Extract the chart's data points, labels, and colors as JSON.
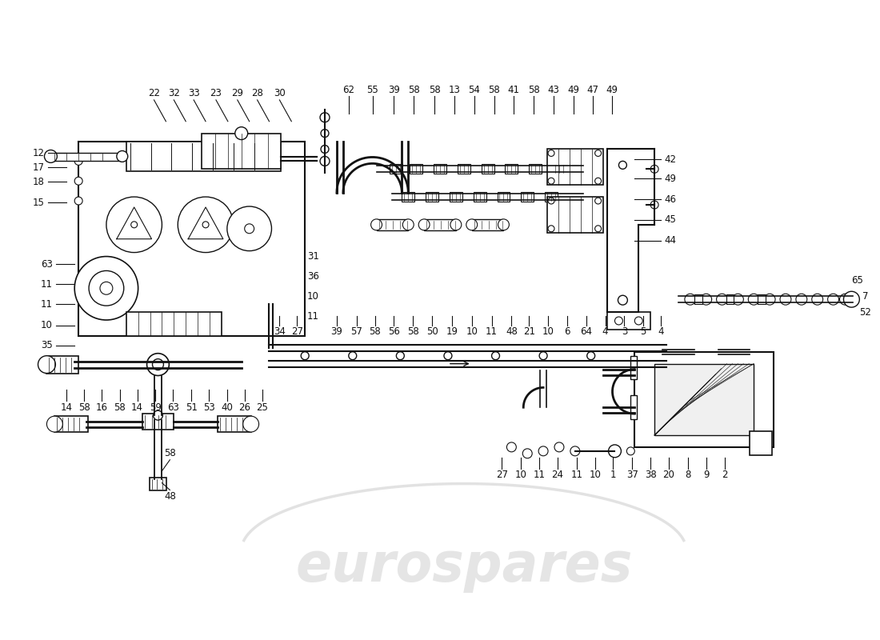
{
  "bg_color": "#ffffff",
  "line_color": "#111111",
  "watermark_color": "#cccccc",
  "fig_width": 11.0,
  "fig_height": 8.0
}
